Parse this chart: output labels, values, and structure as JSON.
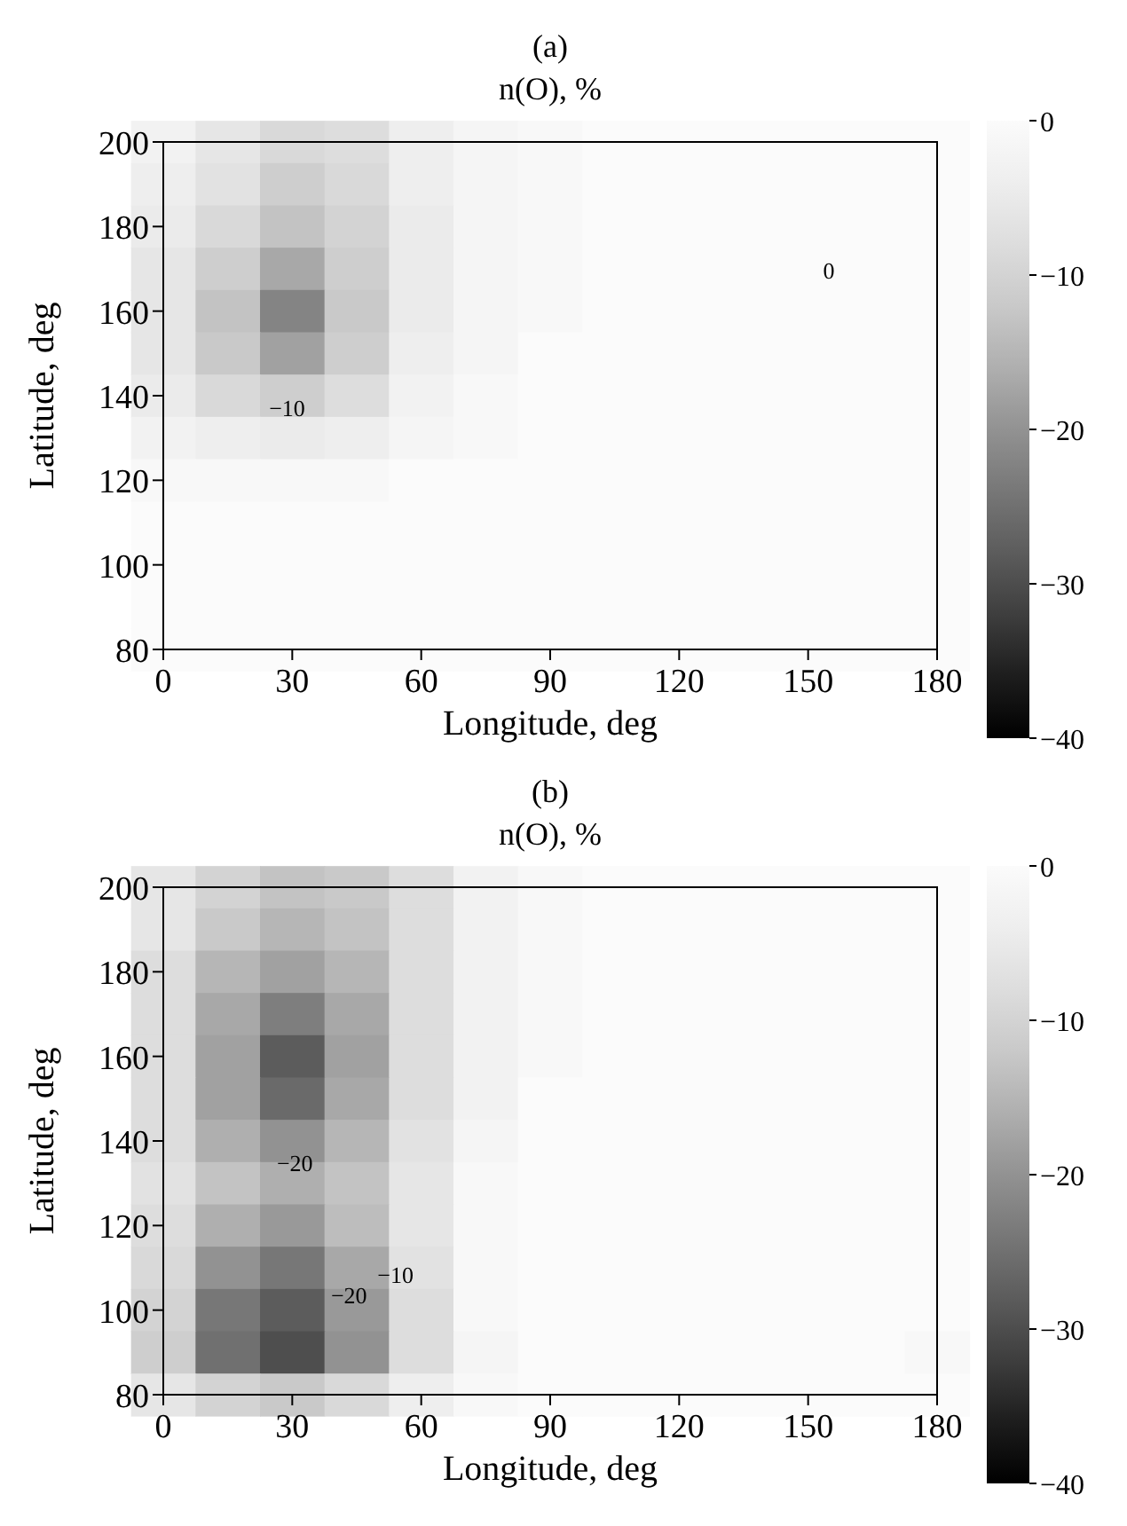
{
  "chart_data": [
    {
      "type": "heatmap",
      "title": "(a)",
      "subtitle": "n(O), %",
      "xlabel": "Longitude, deg",
      "ylabel": "Latitude, deg",
      "categories": [
        "0",
        null,
        "30",
        null,
        "60",
        null,
        "90",
        null,
        "120",
        null,
        "150",
        null,
        "180"
      ],
      "y_categories": [
        "200",
        null,
        "180",
        null,
        "160",
        null,
        "140",
        null,
        "120",
        null,
        "100",
        null,
        "80"
      ],
      "clim": [
        -40,
        0
      ],
      "cticks": [
        {
          "value": 0,
          "label": "0"
        },
        {
          "value": -10,
          "label": "−10"
        },
        {
          "value": -20,
          "label": "−20"
        },
        {
          "value": -30,
          "label": "−30"
        },
        {
          "value": -40,
          "label": "−40"
        }
      ],
      "cells": [
        [
          -3,
          -6,
          -9,
          -8,
          -4,
          -2,
          -1,
          0,
          0,
          0,
          0,
          0,
          0
        ],
        [
          -4,
          -7,
          -11,
          -9,
          -4,
          -2,
          -1,
          0,
          0,
          0,
          0,
          0,
          0
        ],
        [
          -5,
          -9,
          -13,
          -10,
          -5,
          -2,
          -1,
          0,
          0,
          0,
          0,
          0,
          0
        ],
        [
          -6,
          -11,
          -17,
          -11,
          -5,
          -2,
          -1,
          0,
          0,
          0,
          0,
          0,
          0
        ],
        [
          -6,
          -13,
          -22,
          -12,
          -5,
          -2,
          -1,
          0,
          0,
          0,
          0,
          0,
          0
        ],
        [
          -6,
          -12,
          -18,
          -11,
          -4,
          -2,
          0,
          0,
          0,
          0,
          0,
          0,
          0
        ],
        [
          -5,
          -9,
          -11,
          -8,
          -3,
          -1,
          0,
          0,
          0,
          0,
          0,
          0,
          0
        ],
        [
          -3,
          -4,
          -5,
          -4,
          -2,
          -1,
          0,
          0,
          0,
          0,
          0,
          0,
          0
        ],
        [
          -1,
          -1,
          -1,
          -1,
          0,
          0,
          0,
          0,
          0,
          0,
          0,
          0,
          0
        ],
        [
          0,
          0,
          0,
          0,
          0,
          0,
          0,
          0,
          0,
          0,
          0,
          0,
          0
        ],
        [
          0,
          0,
          0,
          0,
          0,
          0,
          0,
          0,
          0,
          0,
          0,
          0,
          0
        ],
        [
          0,
          0,
          0,
          0,
          0,
          0,
          0,
          0,
          0,
          0,
          0,
          0,
          0
        ],
        [
          0,
          0,
          0,
          0,
          0,
          0,
          0,
          0,
          0,
          0,
          0,
          0,
          0
        ]
      ],
      "annotations": [
        "−10",
        "0"
      ]
    },
    {
      "type": "heatmap",
      "title": "(b)",
      "subtitle": "n(O), %",
      "xlabel": "Longitude, deg",
      "ylabel": "Latitude, deg",
      "categories": [
        "0",
        null,
        "30",
        null,
        "60",
        null,
        "90",
        null,
        "120",
        null,
        "150",
        null,
        "180"
      ],
      "y_categories": [
        "200",
        null,
        "180",
        null,
        "160",
        null,
        "140",
        null,
        "120",
        null,
        "100",
        null,
        "80"
      ],
      "clim": [
        -40,
        0
      ],
      "cticks": [
        {
          "value": 0,
          "label": "0"
        },
        {
          "value": -10,
          "label": "−10"
        },
        {
          "value": -20,
          "label": "−20"
        },
        {
          "value": -30,
          "label": "−30"
        },
        {
          "value": -40,
          "label": "−40"
        }
      ],
      "cells": [
        [
          -6,
          -10,
          -13,
          -12,
          -8,
          -3,
          -1,
          0,
          0,
          0,
          0,
          0,
          0
        ],
        [
          -6,
          -12,
          -15,
          -13,
          -8,
          -3,
          -1,
          0,
          0,
          0,
          0,
          0,
          0
        ],
        [
          -8,
          -15,
          -18,
          -15,
          -8,
          -3,
          -1,
          0,
          0,
          0,
          0,
          0,
          0
        ],
        [
          -8,
          -17,
          -23,
          -17,
          -8,
          -3,
          -1,
          0,
          0,
          0,
          0,
          0,
          0
        ],
        [
          -8,
          -18,
          -28,
          -18,
          -8,
          -3,
          -1,
          0,
          0,
          0,
          0,
          0,
          0
        ],
        [
          -8,
          -18,
          -26,
          -17,
          -8,
          -3,
          0,
          0,
          0,
          0,
          0,
          0,
          0
        ],
        [
          -8,
          -16,
          -20,
          -15,
          -7,
          -2,
          0,
          0,
          0,
          0,
          0,
          0,
          0
        ],
        [
          -7,
          -13,
          -16,
          -13,
          -6,
          -1,
          0,
          0,
          0,
          0,
          0,
          0,
          0
        ],
        [
          -8,
          -16,
          -19,
          -14,
          -6,
          -1,
          0,
          0,
          0,
          0,
          0,
          0,
          0
        ],
        [
          -9,
          -20,
          -24,
          -17,
          -7,
          -1,
          0,
          0,
          0,
          0,
          0,
          0,
          0
        ],
        [
          -10,
          -24,
          -28,
          -19,
          -8,
          -1,
          0,
          0,
          0,
          0,
          0,
          0,
          0
        ],
        [
          -11,
          -25,
          -30,
          -20,
          -8,
          -2,
          0,
          0,
          0,
          0,
          0,
          0,
          -1
        ],
        [
          -6,
          -10,
          -12,
          -9,
          -4,
          -1,
          0,
          0,
          0,
          0,
          0,
          0,
          0
        ]
      ],
      "annotations": [
        "−20",
        "−20",
        "−10"
      ]
    }
  ]
}
